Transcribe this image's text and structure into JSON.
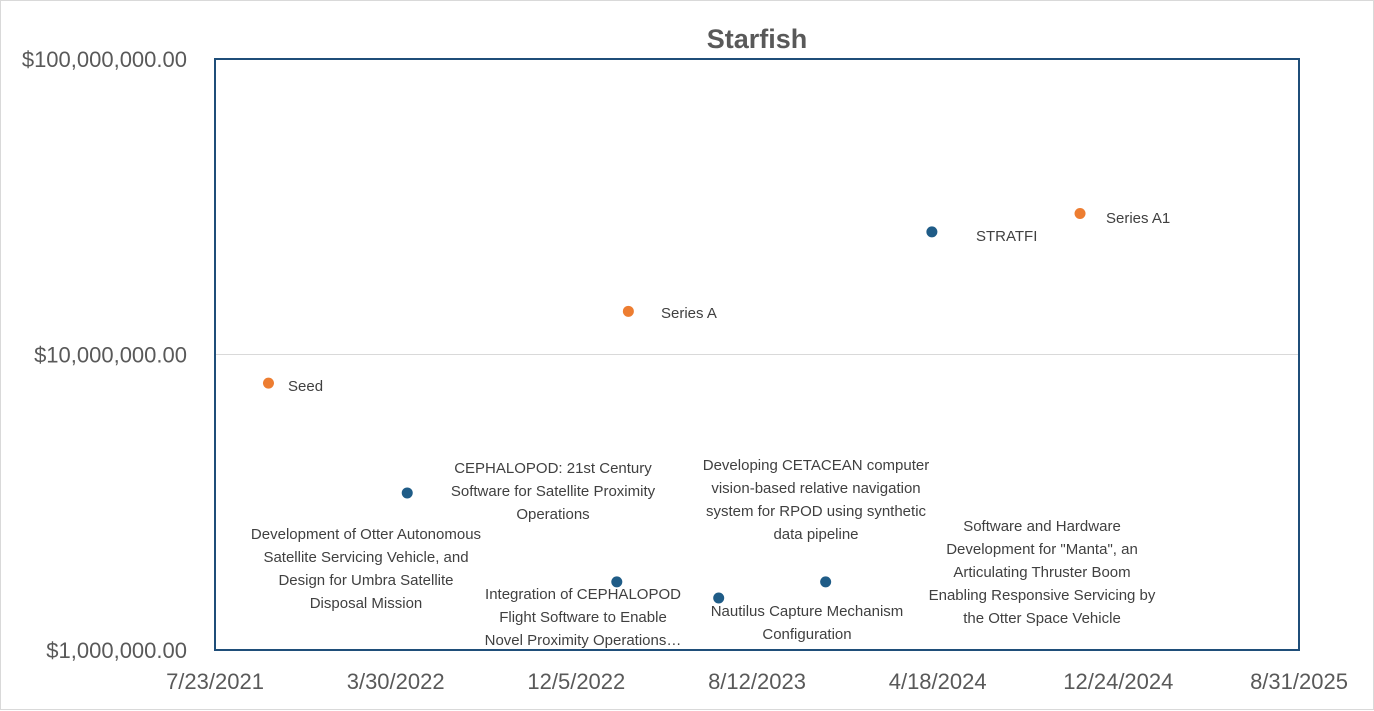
{
  "chart_data": {
    "type": "scatter",
    "title": "Starfish",
    "xlabel": "",
    "ylabel": "",
    "y_scale": "log",
    "ylim": [
      1000000,
      100000000
    ],
    "xlim": [
      "2021-07-23",
      "2025-08-31"
    ],
    "x_tick_labels": [
      "7/23/2021",
      "3/30/2022",
      "12/5/2022",
      "8/12/2023",
      "4/18/2024",
      "12/24/2024",
      "8/31/2025"
    ],
    "y_tick_labels": [
      "$1,000,000.00",
      "$10,000,000.00",
      "$100,000,000.00"
    ],
    "grid": true,
    "legend": "none",
    "series": [
      {
        "color": "#ED7D31",
        "points": [
          {
            "x": "2021-10-05",
            "y": 8000000,
            "label": "Seed"
          },
          {
            "x": "2023-02-15",
            "y": 14000000,
            "label": "Series A"
          },
          {
            "x": "2024-11-01",
            "y": 30000000,
            "label": "Series A1"
          }
        ]
      },
      {
        "color": "#1F5C87",
        "points": [
          {
            "x": "2022-04-15",
            "y": 3400000,
            "label": "CEPHALOPOD: 21st Century Software for Satellite Proximity Operations"
          },
          {
            "x": "2023-01-30",
            "y": 1700000,
            "label": "Development of Otter Autonomous Satellite Servicing Vehicle, and Design for Umbra Satellite Disposal Mission"
          },
          {
            "x": "2023-06-20",
            "y": 1500000,
            "label": "Integration of CEPHALOPOD Flight Software to Enable Novel Proximity Operations…"
          },
          {
            "x": "2023-11-15",
            "y": 1700000,
            "label": "Nautilus Capture Mechanism Configuration"
          },
          {
            "x": "2024-04-10",
            "y": 26000000,
            "label": "STRATFI"
          }
        ]
      }
    ]
  },
  "annotations": [
    {
      "lines": [
        "Seed"
      ],
      "anchor": "start"
    },
    {
      "lines": [
        "Series A"
      ],
      "anchor": "start"
    },
    {
      "lines": [
        "Series A1"
      ],
      "anchor": "start"
    },
    {
      "lines": [
        "STRATFI"
      ],
      "anchor": "start"
    },
    {
      "lines": [
        "CEPHALOPOD: 21st Century",
        "Software for Satellite Proximity",
        "Operations"
      ],
      "anchor": "middle"
    },
    {
      "lines": [
        "Development of Otter Autonomous",
        "Satellite Servicing Vehicle, and",
        "Design for Umbra Satellite",
        "Disposal Mission"
      ],
      "anchor": "middle"
    },
    {
      "lines": [
        "Integration of CEPHALOPOD",
        "Flight Software to Enable",
        "Novel Proximity Operations…"
      ],
      "anchor": "middle"
    },
    {
      "lines": [
        "Nautilus Capture Mechanism",
        "Configuration"
      ],
      "anchor": "middle"
    },
    {
      "lines": [
        "Developing CETACEAN computer",
        "vision-based relative navigation",
        "system for RPOD using synthetic",
        "data pipeline"
      ],
      "anchor": "middle"
    },
    {
      "lines": [
        "Software and Hardware",
        "Development for \"Manta\", an",
        "Articulating Thruster Boom",
        "Enabling Responsive Servicing by",
        "the Otter Space Vehicle"
      ],
      "anchor": "middle"
    }
  ]
}
